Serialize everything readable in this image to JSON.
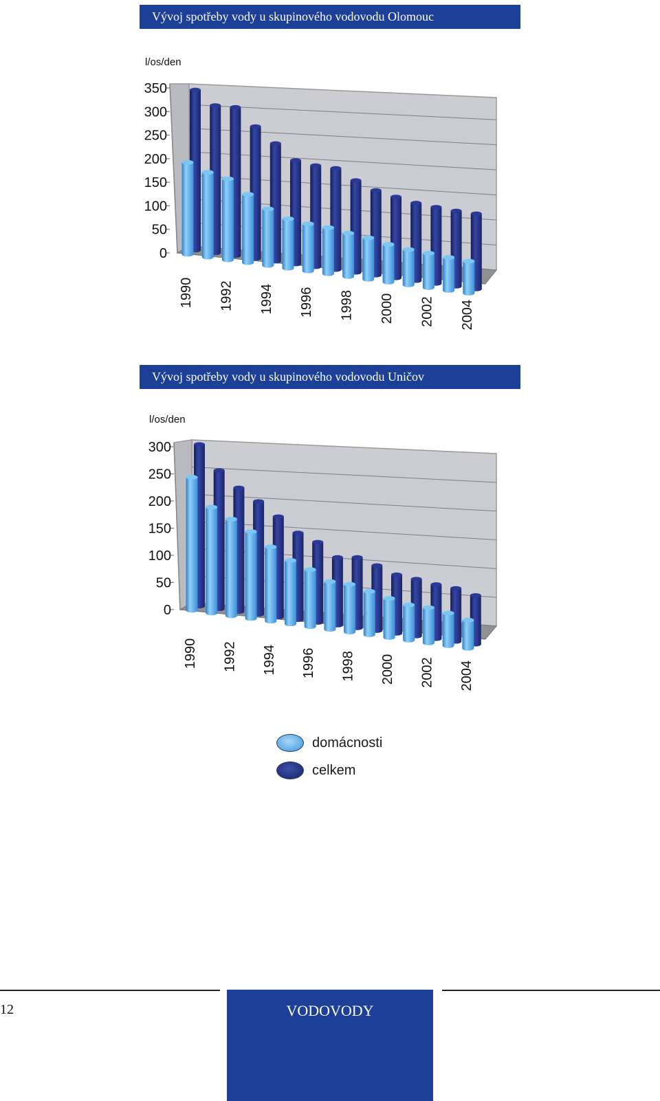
{
  "chart_data": [
    {
      "type": "bar",
      "title": "Vývoj spotřeby vody u skupinového vodovodu Olomouc",
      "ylabel": "l/os/den",
      "ylim": [
        0,
        350
      ],
      "yticks": [
        "0",
        "50",
        "100",
        "150",
        "200",
        "250",
        "300",
        "350"
      ],
      "categories": [
        "1990",
        "1991",
        "1992",
        "1993",
        "1994",
        "1995",
        "1996",
        "1997",
        "1998",
        "1999",
        "2000",
        "2001",
        "2002",
        "2003",
        "2004"
      ],
      "xtick_labels": [
        "1990",
        "",
        "1992",
        "",
        "1994",
        "",
        "1996",
        "",
        "1998",
        "",
        "2000",
        "",
        "2002",
        "",
        "2004"
      ],
      "series": [
        {
          "name": "celkem",
          "values": [
            340,
            313,
            315,
            280,
            250,
            220,
            215,
            215,
            195,
            180,
            172,
            165,
            162,
            160,
            160
          ]
        },
        {
          "name": "domácnosti",
          "values": [
            195,
            180,
            172,
            145,
            120,
            105,
            100,
            98,
            92,
            88,
            80,
            75,
            73,
            70,
            68
          ]
        }
      ]
    },
    {
      "type": "bar",
      "title": "Vývoj spotřeby vody u skupinového vodovodu Uničov",
      "ylabel": "l/os/den",
      "ylim": [
        0,
        300
      ],
      "yticks": [
        "0",
        "50",
        "100",
        "150",
        "200",
        "250",
        "300"
      ],
      "categories": [
        "1990",
        "1991",
        "1992",
        "1993",
        "1994",
        "1995",
        "1996",
        "1997",
        "1998",
        "1999",
        "2000",
        "2001",
        "2002",
        "2003",
        "2004"
      ],
      "xtick_labels": [
        "1990",
        "",
        "1992",
        "",
        "1994",
        "",
        "1996",
        "",
        "1998",
        "",
        "2000",
        "",
        "2002",
        "",
        "2004"
      ],
      "series": [
        {
          "name": "celkem",
          "values": [
            298,
            255,
            228,
            208,
            185,
            160,
            148,
            125,
            130,
            120,
            108,
            105,
            100,
            98,
            90
          ]
        },
        {
          "name": "domácnosti",
          "values": [
            245,
            195,
            178,
            160,
            137,
            117,
            105,
            88,
            88,
            80,
            72,
            65,
            65,
            60,
            52
          ]
        }
      ]
    }
  ],
  "legend": [
    {
      "label": "domácnosti",
      "color": "#6ab4ee"
    },
    {
      "label": "celkem",
      "color": "#23307a"
    }
  ],
  "colors": {
    "banner": "#1c3f98",
    "light_series": "#5eb0ec",
    "dark_series": "#24307e",
    "plot_bg": "#cbcdd2"
  },
  "footer": {
    "page_number": "12",
    "section": "VODOVODY"
  }
}
